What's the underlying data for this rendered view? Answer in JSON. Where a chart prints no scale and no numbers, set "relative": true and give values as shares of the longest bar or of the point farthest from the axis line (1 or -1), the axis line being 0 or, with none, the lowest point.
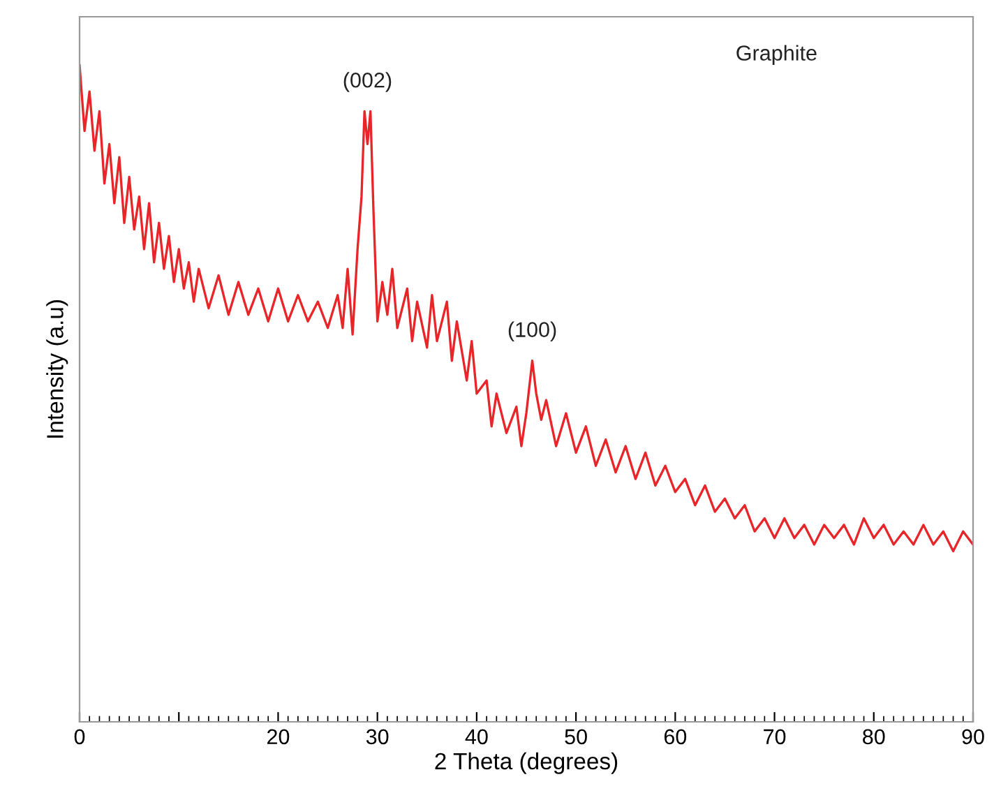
{
  "chart_data": {
    "type": "line",
    "relative": true,
    "xlabel": "2 Theta (degrees)",
    "ylabel": "Intensity (a.u)",
    "xlim": [
      0,
      90
    ],
    "xticks": [
      0,
      {
        "value": 10,
        "label": null
      },
      20,
      30,
      40,
      50,
      60,
      70,
      80,
      90
    ],
    "annotations": [
      {
        "text": "(002)",
        "x": 29,
        "y": 0.93
      },
      {
        "text": "(100)",
        "x": 45.6,
        "y": 0.55
      },
      "Graphite"
    ],
    "grid": false,
    "legend": false,
    "marker": "none",
    "line_style": "solid",
    "series": [
      {
        "color": "#e8262a",
        "x": [
          0,
          0.5,
          1,
          1.5,
          2,
          2.5,
          3,
          3.5,
          4,
          4.5,
          5,
          5.5,
          6,
          6.5,
          7,
          7.5,
          8,
          8.5,
          9,
          9.5,
          10,
          10.5,
          11,
          11.5,
          12,
          13,
          14,
          15,
          16,
          17,
          18,
          19,
          20,
          21,
          22,
          23,
          24,
          25,
          26,
          26.5,
          27,
          27.5,
          28,
          28.4,
          28.7,
          29.0,
          29.3,
          29.6,
          30,
          30.5,
          31,
          31.5,
          32,
          33,
          33.5,
          34,
          35,
          35.5,
          36,
          37,
          37.5,
          38,
          39,
          39.5,
          40,
          41,
          41.5,
          42,
          43,
          44,
          44.5,
          45,
          45.6,
          46,
          46.5,
          47,
          48,
          49,
          50,
          51,
          52,
          53,
          54,
          55,
          56,
          57,
          58,
          59,
          60,
          61,
          62,
          63,
          64,
          65,
          66,
          67,
          68,
          69,
          70,
          71,
          72,
          73,
          74,
          75,
          76,
          77,
          78,
          79,
          80,
          81,
          82,
          83,
          84,
          85,
          86,
          87,
          88,
          89,
          90
        ],
        "values": [
          1.0,
          0.9,
          0.96,
          0.87,
          0.93,
          0.82,
          0.88,
          0.79,
          0.86,
          0.76,
          0.83,
          0.75,
          0.8,
          0.72,
          0.79,
          0.7,
          0.76,
          0.69,
          0.74,
          0.67,
          0.72,
          0.66,
          0.7,
          0.64,
          0.69,
          0.63,
          0.68,
          0.62,
          0.67,
          0.62,
          0.66,
          0.61,
          0.66,
          0.61,
          0.65,
          0.61,
          0.64,
          0.6,
          0.65,
          0.6,
          0.69,
          0.59,
          0.72,
          0.8,
          0.93,
          0.88,
          0.93,
          0.78,
          0.61,
          0.67,
          0.62,
          0.69,
          0.6,
          0.66,
          0.58,
          0.64,
          0.57,
          0.65,
          0.58,
          0.64,
          0.55,
          0.61,
          0.52,
          0.58,
          0.5,
          0.52,
          0.45,
          0.5,
          0.44,
          0.48,
          0.42,
          0.47,
          0.55,
          0.5,
          0.46,
          0.49,
          0.42,
          0.47,
          0.41,
          0.45,
          0.39,
          0.43,
          0.38,
          0.42,
          0.37,
          0.41,
          0.36,
          0.39,
          0.35,
          0.37,
          0.33,
          0.36,
          0.32,
          0.34,
          0.31,
          0.33,
          0.29,
          0.31,
          0.28,
          0.31,
          0.28,
          0.3,
          0.27,
          0.3,
          0.28,
          0.3,
          0.27,
          0.31,
          0.28,
          0.3,
          0.27,
          0.29,
          0.27,
          0.3,
          0.27,
          0.29,
          0.26,
          0.29,
          0.27
        ]
      }
    ]
  }
}
